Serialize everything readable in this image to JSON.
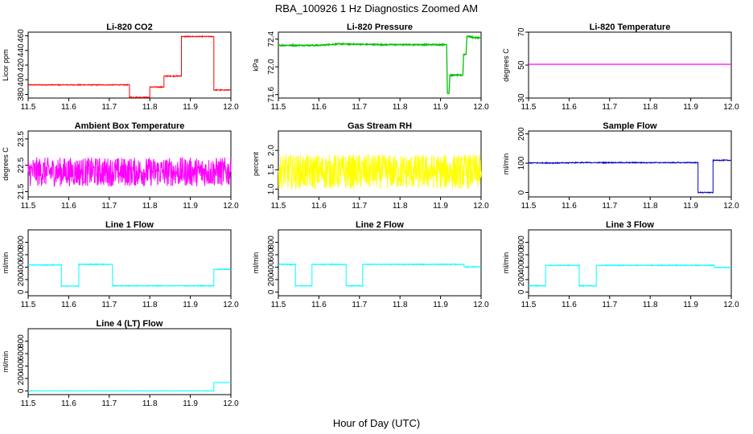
{
  "figure": {
    "title": "RBA_100926  1 Hz Diagnostics Zoomed AM",
    "xlabel": "Hour of Day (UTC)"
  },
  "chart_data": [
    {
      "type": "line",
      "title": "Li-820 CO2",
      "ylabel": "Licor ppm",
      "color": "#ff0000",
      "xlim": [
        11.5,
        12.0
      ],
      "ylim": [
        375,
        465
      ],
      "xticks": [
        11.5,
        11.6,
        11.7,
        11.8,
        11.9,
        12.0
      ],
      "yticks": [
        380,
        400,
        420,
        440,
        460
      ],
      "noise": 0.6,
      "series": [
        {
          "x": [
            11.5,
            11.75,
            11.75,
            11.8,
            11.8,
            11.835,
            11.835,
            11.878,
            11.878,
            11.958,
            11.958,
            12.0
          ],
          "y": [
            393,
            393,
            376,
            376,
            390,
            390,
            405,
            405,
            459,
            459,
            386,
            386
          ]
        }
      ]
    },
    {
      "type": "line",
      "title": "Li-820 Pressure",
      "ylabel": "kPa",
      "color": "#00c000",
      "xlim": [
        11.5,
        12.0
      ],
      "ylim": [
        71.55,
        72.5
      ],
      "xticks": [
        11.5,
        11.6,
        11.7,
        11.8,
        11.9,
        12.0
      ],
      "yticks": [
        71.6,
        72.0,
        72.4
      ],
      "noise": 0.008,
      "series": [
        {
          "x": [
            11.5,
            11.6,
            11.65,
            11.75,
            11.9,
            11.915,
            11.917,
            11.921,
            11.923,
            11.955,
            11.957,
            11.963,
            11.965,
            11.985,
            12.0
          ],
          "y": [
            72.31,
            72.31,
            72.33,
            72.32,
            72.32,
            72.32,
            71.62,
            71.62,
            71.88,
            71.88,
            72.18,
            72.18,
            72.44,
            72.42,
            72.42
          ]
        }
      ]
    },
    {
      "type": "line",
      "title": "Li-820 Temperature",
      "ylabel": "degrees C",
      "color": "#ff00ff",
      "xlim": [
        11.5,
        12.0
      ],
      "ylim": [
        30,
        70
      ],
      "xticks": [
        11.5,
        11.6,
        11.7,
        11.8,
        11.9,
        12.0
      ],
      "yticks": [
        30,
        50,
        70
      ],
      "noise": 0,
      "series": [
        {
          "x": [
            11.5,
            12.0
          ],
          "y": [
            50.5,
            50.5
          ]
        }
      ]
    },
    {
      "type": "line",
      "title": "Ambient Box Temperature",
      "ylabel": "degrees C",
      "color": "#ff00ff",
      "xlim": [
        11.5,
        12.0
      ],
      "ylim": [
        21.3,
        23.8
      ],
      "xticks": [
        11.5,
        11.6,
        11.7,
        11.8,
        11.9,
        12.0
      ],
      "yticks": [
        21.5,
        22.5,
        23.5
      ],
      "noise": 0.55,
      "series": [
        {
          "x": [
            11.5,
            12.0
          ],
          "y": [
            22.25,
            22.25
          ]
        }
      ]
    },
    {
      "type": "line",
      "title": "Gas Stream RH",
      "ylabel": "percent",
      "color": "#ffff00",
      "xlim": [
        11.5,
        12.0
      ],
      "ylim": [
        0.8,
        2.5
      ],
      "xticks": [
        11.5,
        11.6,
        11.7,
        11.8,
        11.9,
        12.0
      ],
      "yticks": [
        1.0,
        1.5,
        2.0
      ],
      "noise": 0.45,
      "series": [
        {
          "x": [
            11.5,
            12.0
          ],
          "y": [
            1.45,
            1.45
          ]
        }
      ]
    },
    {
      "type": "line",
      "title": "Sample Flow",
      "ylabel": "ml/min",
      "color": "#0000cc",
      "xlim": [
        11.5,
        12.0
      ],
      "ylim": [
        -15,
        210
      ],
      "xticks": [
        11.5,
        11.6,
        11.7,
        11.8,
        11.9,
        12.0
      ],
      "yticks": [
        0,
        100,
        200
      ],
      "noise": 1.5,
      "series": [
        {
          "x": [
            11.5,
            11.6,
            11.6,
            11.918,
            11.918,
            11.955,
            11.955,
            12.0
          ],
          "y": [
            101,
            101,
            102,
            102,
            0,
            0,
            110,
            110
          ]
        }
      ]
    },
    {
      "type": "line",
      "title": "Line 1 Flow",
      "ylabel": "ml/min",
      "color": "#00ffff",
      "xlim": [
        11.5,
        12.0
      ],
      "ylim": [
        -60,
        1000
      ],
      "xticks": [
        11.5,
        11.6,
        11.7,
        11.8,
        11.9,
        12.0
      ],
      "yticks": [
        0,
        200,
        400,
        600,
        800
      ],
      "noise": 6,
      "series": [
        {
          "x": [
            11.5,
            11.582,
            11.582,
            11.625,
            11.625,
            11.708,
            11.708,
            11.958,
            11.958,
            12.0
          ],
          "y": [
            435,
            435,
            95,
            95,
            445,
            445,
            100,
            100,
            365,
            365
          ]
        }
      ]
    },
    {
      "type": "line",
      "title": "Line 2 Flow",
      "ylabel": "ml/min",
      "color": "#00ffff",
      "xlim": [
        11.5,
        12.0
      ],
      "ylim": [
        -60,
        1000
      ],
      "xticks": [
        11.5,
        11.6,
        11.7,
        11.8,
        11.9,
        12.0
      ],
      "yticks": [
        0,
        200,
        400,
        600,
        800
      ],
      "noise": 6,
      "series": [
        {
          "x": [
            11.5,
            11.542,
            11.542,
            11.583,
            11.583,
            11.667,
            11.667,
            11.708,
            11.708,
            11.958,
            11.958,
            12.0
          ],
          "y": [
            445,
            445,
            100,
            100,
            445,
            445,
            100,
            100,
            445,
            445,
            405,
            405
          ]
        }
      ]
    },
    {
      "type": "line",
      "title": "Line 3 Flow",
      "ylabel": "ml/min",
      "color": "#00ffff",
      "xlim": [
        11.5,
        12.0
      ],
      "ylim": [
        -60,
        1000
      ],
      "xticks": [
        11.5,
        11.6,
        11.7,
        11.8,
        11.9,
        12.0
      ],
      "yticks": [
        0,
        200,
        400,
        600,
        800
      ],
      "noise": 6,
      "series": [
        {
          "x": [
            11.5,
            11.542,
            11.542,
            11.625,
            11.625,
            11.667,
            11.667,
            11.958,
            11.958,
            12.0
          ],
          "y": [
            100,
            100,
            430,
            430,
            100,
            100,
            430,
            430,
            395,
            395
          ]
        }
      ]
    },
    {
      "type": "line",
      "title": "Line 4 (LT) Flow",
      "ylabel": "ml/min",
      "color": "#00ffff",
      "xlim": [
        11.5,
        12.0
      ],
      "ylim": [
        -60,
        1000
      ],
      "xticks": [
        11.5,
        11.6,
        11.7,
        11.8,
        11.9,
        12.0
      ],
      "yticks": [
        0,
        200,
        400,
        600,
        800
      ],
      "noise": 2,
      "series": [
        {
          "x": [
            11.5,
            11.958,
            11.958,
            12.0
          ],
          "y": [
            0,
            0,
            135,
            135
          ]
        }
      ]
    }
  ]
}
